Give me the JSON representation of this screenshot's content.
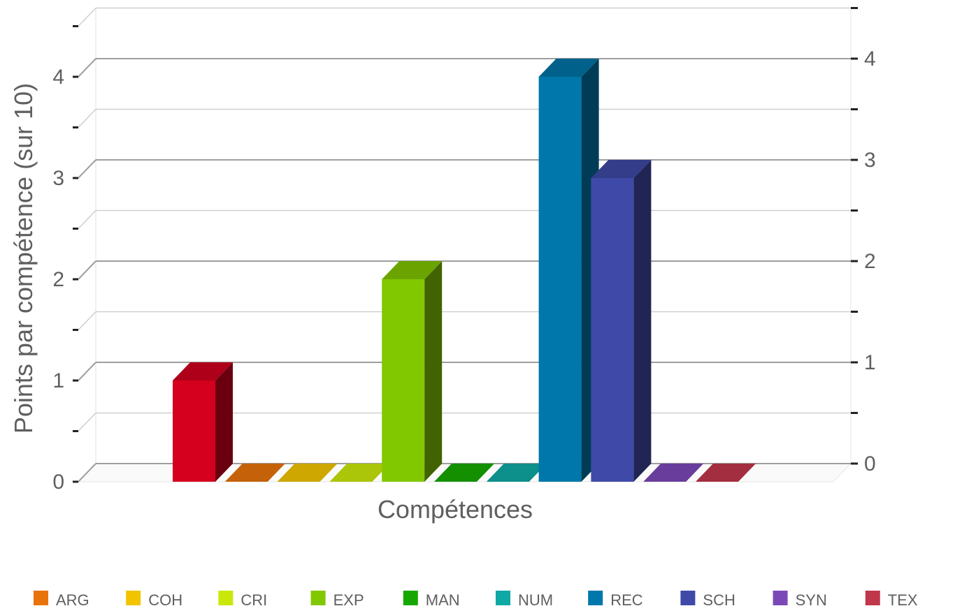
{
  "chart_data": {
    "type": "bar",
    "categories": [
      "TEX",
      "ARG",
      "COH",
      "CRI",
      "EXP",
      "MAN",
      "NUM",
      "REC",
      "SCH",
      "SYN",
      "TEX"
    ],
    "values": [
      1,
      0,
      0,
      0,
      2,
      0,
      0,
      4,
      3,
      0,
      0
    ],
    "colors": [
      "#d4001e",
      "#e8730a",
      "#f2c400",
      "#c9e80a",
      "#82c800",
      "#16a800",
      "#0fa8a4",
      "#0077aa",
      "#3f4aa8",
      "#7b48b8",
      "#c0364a"
    ],
    "title": "",
    "xlabel": "Compétences",
    "ylabel": "Points par compétence (sur 10)",
    "ylim": [
      0,
      4
    ],
    "y_ticks": [
      0,
      1,
      2,
      3,
      4
    ],
    "grid": true,
    "legend_position": "bottom",
    "legend": [
      {
        "label": "ARG",
        "color": "#e8730a"
      },
      {
        "label": "COH",
        "color": "#f2c400"
      },
      {
        "label": "CRI",
        "color": "#c9e80a"
      },
      {
        "label": "EXP",
        "color": "#82c800"
      },
      {
        "label": "MAN",
        "color": "#16a800"
      },
      {
        "label": "NUM",
        "color": "#0fa8a4"
      },
      {
        "label": "REC",
        "color": "#0077aa"
      },
      {
        "label": "SCH",
        "color": "#3f4aa8"
      },
      {
        "label": "SYN",
        "color": "#7b48b8"
      },
      {
        "label": "TEX",
        "color": "#c0364a"
      }
    ]
  }
}
